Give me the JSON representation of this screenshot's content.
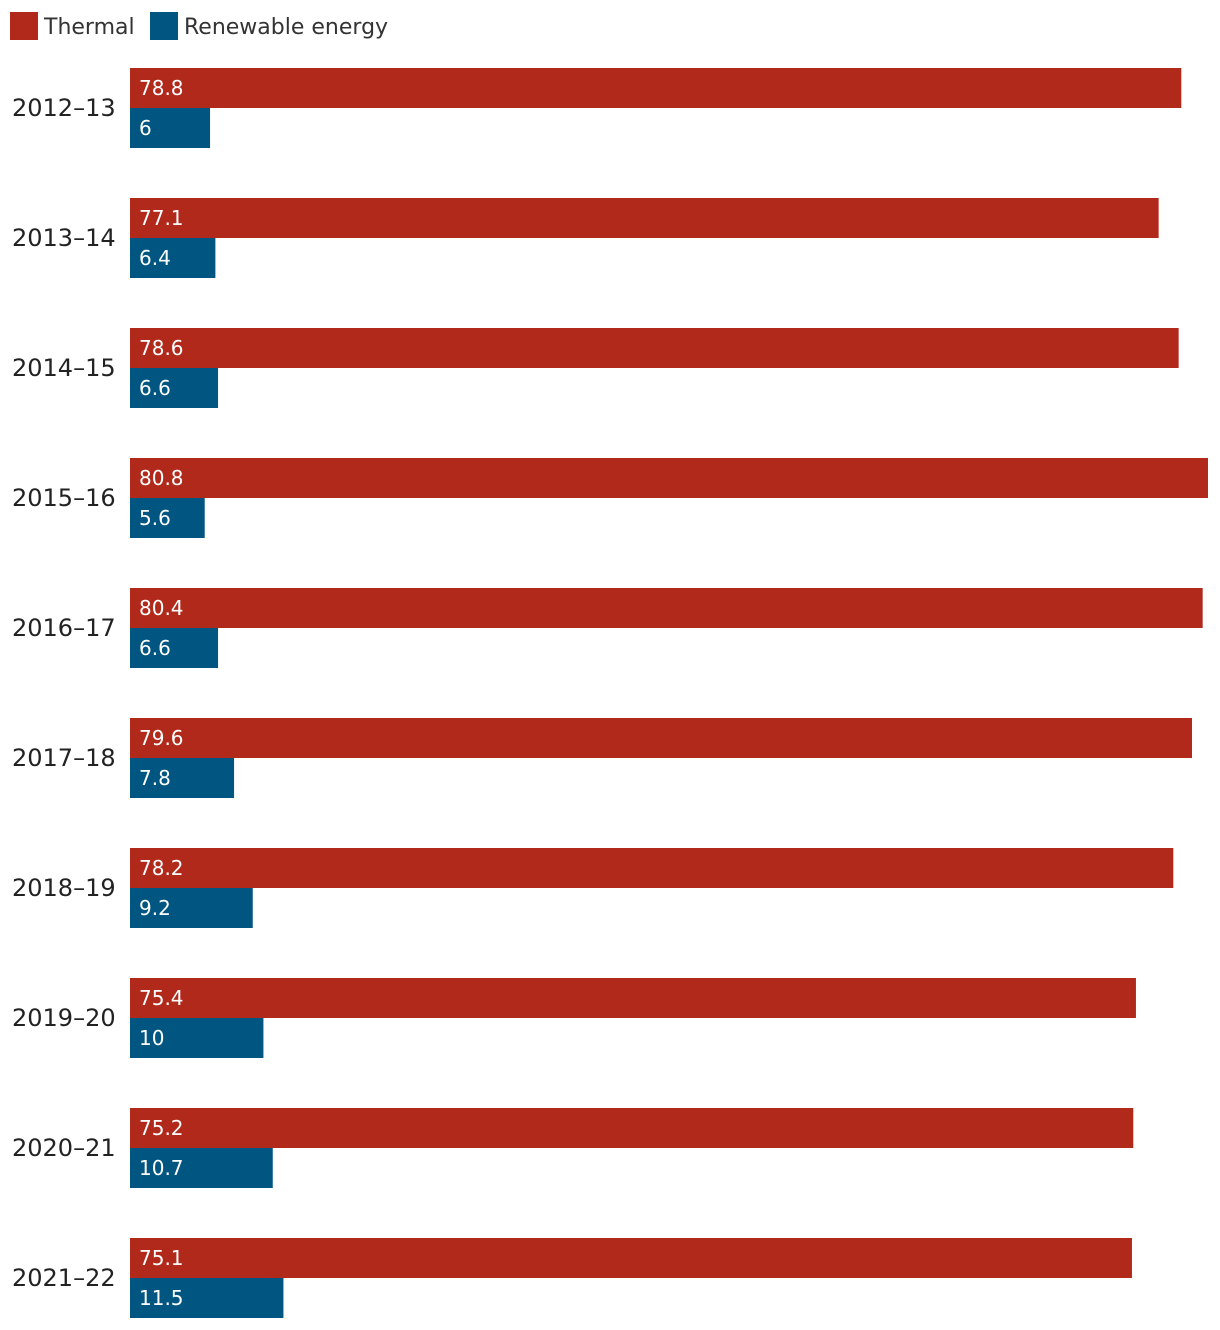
{
  "chart_data": {
    "type": "bar",
    "orientation": "horizontal",
    "categories": [
      "2012–13",
      "2013–14",
      "2014–15",
      "2015–16",
      "2016–17",
      "2017–18",
      "2018–19",
      "2019–20",
      "2020–21",
      "2021–22"
    ],
    "series": [
      {
        "name": "Thermal",
        "color": "#b0291b",
        "values": [
          78.8,
          77.1,
          78.6,
          80.8,
          80.4,
          79.6,
          78.2,
          75.4,
          75.2,
          75.1
        ],
        "labels": [
          "78.8",
          "77.1",
          "78.6",
          "80.8",
          "80.4",
          "79.6",
          "78.2",
          "75.4",
          "75.2",
          "75.1"
        ]
      },
      {
        "name": "Renewable energy",
        "color": "#005581",
        "values": [
          6,
          6.4,
          6.6,
          5.6,
          6.6,
          7.8,
          9.2,
          10,
          10.7,
          11.5
        ],
        "labels": [
          "6",
          "6.4",
          "6.6",
          "5.6",
          "6.6",
          "7.8",
          "9.2",
          "10",
          "10.7",
          "11.5"
        ]
      }
    ],
    "title": "",
    "xlabel": "",
    "ylabel": "",
    "xlim": [
      0,
      80.8
    ],
    "grid": false,
    "legend_position": "top-left"
  }
}
